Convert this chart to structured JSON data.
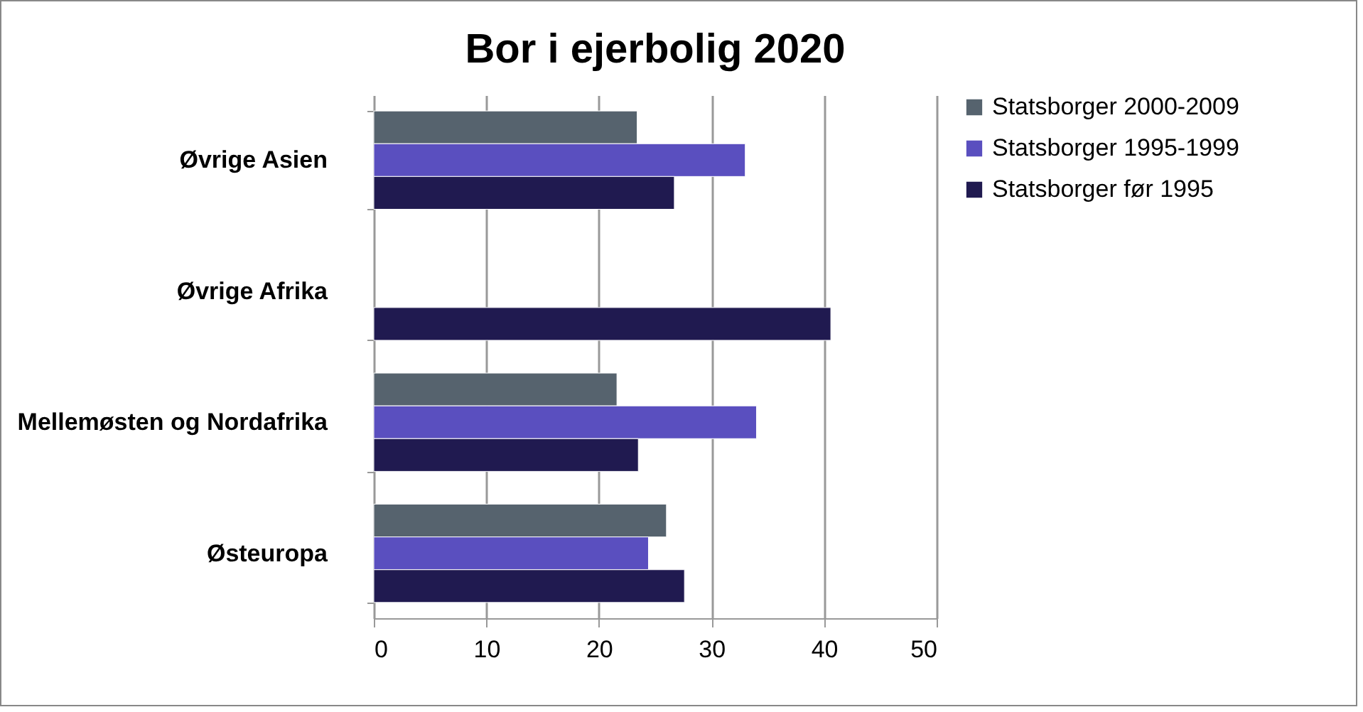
{
  "chart_data": {
    "type": "bar",
    "orientation": "horizontal",
    "title": "Bor i ejerbolig 2020",
    "categories": [
      "Øvrige Asien",
      "Øvrige Afrika",
      "Mellemøsten og Nordafrika",
      "Østeuropa"
    ],
    "series": [
      {
        "name": "Statsborger 2000-2009",
        "color": "#56636e",
        "values": [
          23.4,
          null,
          21.6,
          26.0
        ]
      },
      {
        "name": "Statsborger 1995-1999",
        "color": "#5a4fbf",
        "values": [
          33.0,
          null,
          34.0,
          24.4
        ]
      },
      {
        "name": "Statsborger før 1995",
        "color": "#201a50",
        "values": [
          26.7,
          40.6,
          23.5,
          27.6
        ]
      }
    ],
    "xlim": [
      0,
      50
    ],
    "xticks": [
      0,
      10,
      20,
      30,
      40,
      50
    ],
    "grid": "x",
    "legend": "top right"
  }
}
